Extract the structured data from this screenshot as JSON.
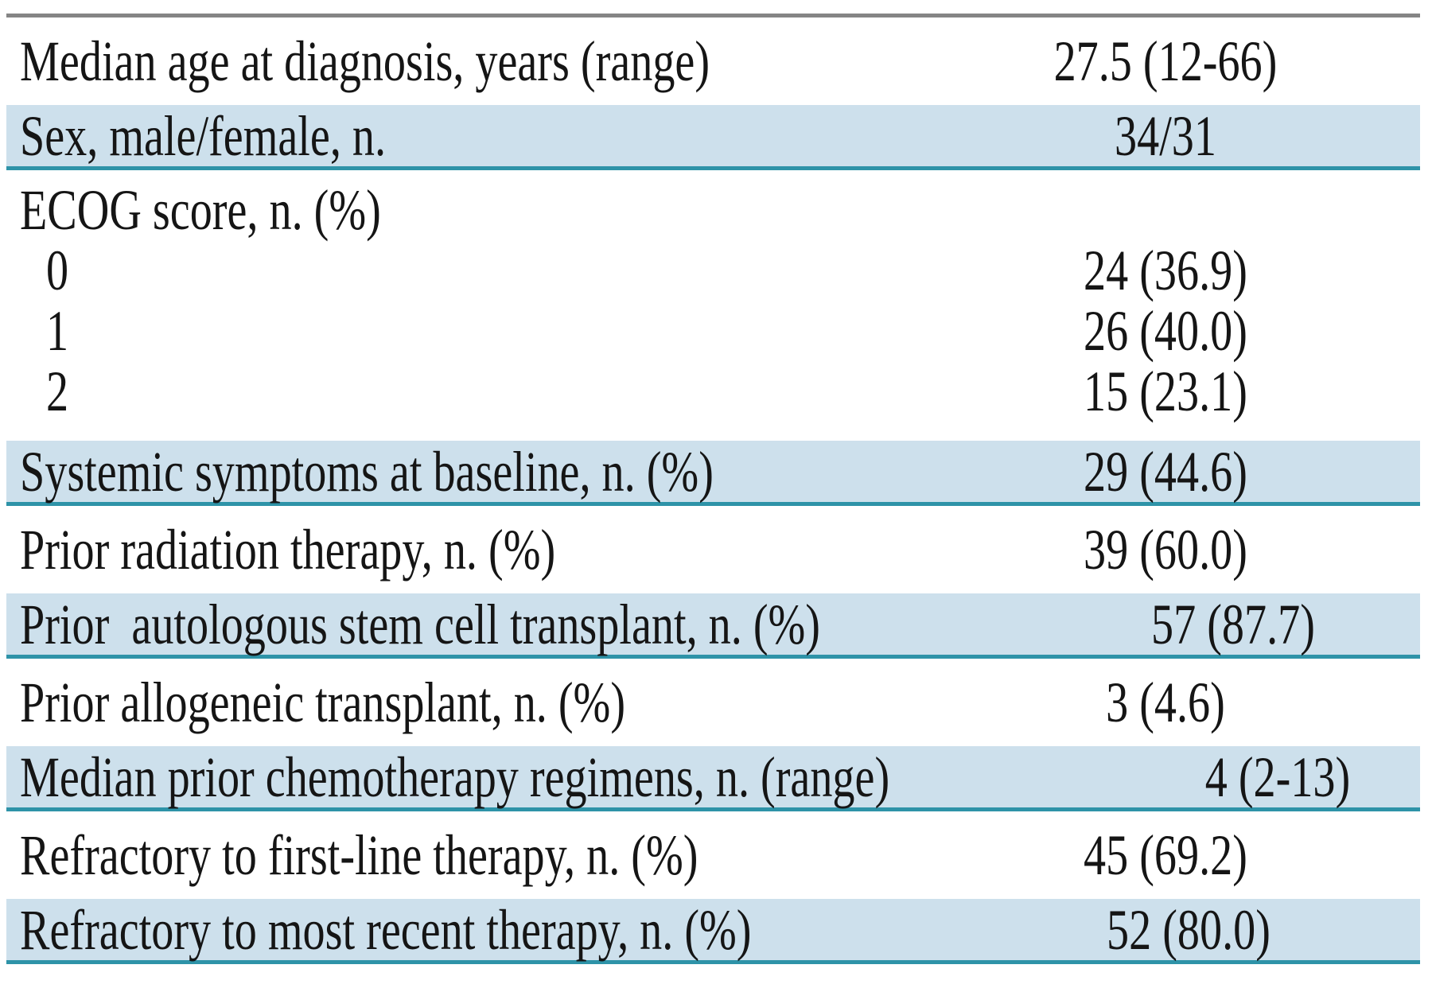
{
  "colors": {
    "row_highlight_blue": "#cde0ec",
    "rule_teal": "#2e93a8",
    "rule_top_gray": "#858585",
    "text": "#151515"
  },
  "table": {
    "rows": [
      {
        "label": "Median age at diagnosis, years (range)",
        "value": "27.5 (12-66)",
        "shade": "white"
      },
      {
        "label": "Sex, male/female, n.",
        "value": "34/31",
        "shade": "blue"
      },
      {
        "label": "ECOG score, n. (%)",
        "value": "",
        "shade": "white",
        "sub": [
          {
            "label": "0",
            "value": "24 (36.9)"
          },
          {
            "label": "1",
            "value": "26 (40.0)"
          },
          {
            "label": "2",
            "value": "15 (23.1)"
          }
        ]
      },
      {
        "label": "Systemic symptoms at baseline, n. (%)",
        "value": "29 (44.6)",
        "shade": "blue"
      },
      {
        "label": "Prior radiation therapy, n. (%)",
        "value": "39 (60.0)",
        "shade": "white"
      },
      {
        "label": "Prior  autologous stem cell transplant, n. (%)",
        "value": "57 (87.7)",
        "shade": "blue"
      },
      {
        "label": "Prior allogeneic transplant, n. (%)",
        "value": "3 (4.6)",
        "shade": "white"
      },
      {
        "label": "Median prior chemotherapy regimens, n. (range)",
        "value": "4 (2-13)",
        "shade": "blue"
      },
      {
        "label": "Refractory to first-line therapy, n. (%)",
        "value": "45 (69.2)",
        "shade": "white"
      },
      {
        "label": "Refractory to most recent therapy, n. (%)",
        "value": "52 (80.0)",
        "shade": "blue"
      }
    ]
  }
}
